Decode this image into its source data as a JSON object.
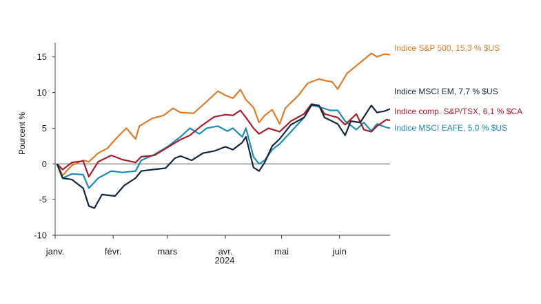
{
  "chart_data": {
    "type": "line",
    "title": "",
    "xlabel": "2024",
    "ylabel": "Pourcent  %",
    "ylim": [
      -10,
      17
    ],
    "y_ticks": [
      -10,
      -5,
      0,
      5,
      10,
      15
    ],
    "x_range": [
      "2024-01-01",
      "2024-06-28"
    ],
    "x_ticks": [
      {
        "date": "2024-01-01",
        "label": "janv."
      },
      {
        "date": "2024-02-01",
        "label": "févr."
      },
      {
        "date": "2024-03-01",
        "label": "mars"
      },
      {
        "date": "2024-04-01",
        "label": "avr."
      },
      {
        "date": "2024-05-01",
        "label": "mai"
      },
      {
        "date": "2024-06-01",
        "label": "juin"
      }
    ],
    "grid": false,
    "zero_line": true,
    "series": [
      {
        "name": "Indice S&P 500, 15,3 % $US",
        "color": "#E07B2A",
        "points": [
          [
            "2024-01-02",
            0
          ],
          [
            "2024-01-05",
            -1.6
          ],
          [
            "2024-01-10",
            -0.2
          ],
          [
            "2024-01-16",
            0.5
          ],
          [
            "2024-01-19",
            0.3
          ],
          [
            "2024-01-24",
            1.5
          ],
          [
            "2024-01-29",
            2.2
          ],
          [
            "2024-02-02",
            3.4
          ],
          [
            "2024-02-08",
            5.0
          ],
          [
            "2024-02-13",
            3.5
          ],
          [
            "2024-02-15",
            5.3
          ],
          [
            "2024-02-22",
            6.4
          ],
          [
            "2024-02-28",
            6.8
          ],
          [
            "2024-03-04",
            7.8
          ],
          [
            "2024-03-08",
            7.2
          ],
          [
            "2024-03-15",
            7.1
          ],
          [
            "2024-03-21",
            8.5
          ],
          [
            "2024-03-28",
            10.2
          ],
          [
            "2024-04-01",
            9.6
          ],
          [
            "2024-04-05",
            9.2
          ],
          [
            "2024-04-09",
            10.4
          ],
          [
            "2024-04-12",
            9.0
          ],
          [
            "2024-04-16",
            7.9
          ],
          [
            "2024-04-19",
            5.8
          ],
          [
            "2024-04-22",
            6.8
          ],
          [
            "2024-04-26",
            7.6
          ],
          [
            "2024-04-30",
            5.6
          ],
          [
            "2024-05-03",
            7.8
          ],
          [
            "2024-05-10",
            9.6
          ],
          [
            "2024-05-15",
            11.3
          ],
          [
            "2024-05-21",
            11.9
          ],
          [
            "2024-05-24",
            11.7
          ],
          [
            "2024-05-28",
            11.5
          ],
          [
            "2024-05-31",
            10.5
          ],
          [
            "2024-06-05",
            12.7
          ],
          [
            "2024-06-12",
            14.2
          ],
          [
            "2024-06-18",
            15.5
          ],
          [
            "2024-06-21",
            15.0
          ],
          [
            "2024-06-25",
            15.4
          ],
          [
            "2024-06-28",
            15.3
          ]
        ]
      },
      {
        "name": "Indice MSCI EM, 7,7 % $US",
        "color": "#12263F",
        "points": [
          [
            "2024-01-02",
            0
          ],
          [
            "2024-01-05",
            -2.0
          ],
          [
            "2024-01-10",
            -2.2
          ],
          [
            "2024-01-16",
            -3.4
          ],
          [
            "2024-01-19",
            -5.9
          ],
          [
            "2024-01-22",
            -6.2
          ],
          [
            "2024-01-26",
            -4.3
          ],
          [
            "2024-02-02",
            -4.5
          ],
          [
            "2024-02-07",
            -3.0
          ],
          [
            "2024-02-13",
            -2.0
          ],
          [
            "2024-02-16",
            -1.0
          ],
          [
            "2024-02-22",
            -0.8
          ],
          [
            "2024-02-29",
            -0.6
          ],
          [
            "2024-03-05",
            0.8
          ],
          [
            "2024-03-08",
            1.1
          ],
          [
            "2024-03-14",
            0.5
          ],
          [
            "2024-03-20",
            1.5
          ],
          [
            "2024-03-26",
            1.8
          ],
          [
            "2024-04-01",
            2.4
          ],
          [
            "2024-04-05",
            2.0
          ],
          [
            "2024-04-10",
            3.0
          ],
          [
            "2024-04-12",
            3.8
          ],
          [
            "2024-04-16",
            -0.5
          ],
          [
            "2024-04-19",
            -1.0
          ],
          [
            "2024-04-22",
            0.2
          ],
          [
            "2024-04-26",
            2.5
          ],
          [
            "2024-04-30",
            3.5
          ],
          [
            "2024-05-06",
            5.5
          ],
          [
            "2024-05-13",
            6.5
          ],
          [
            "2024-05-17",
            8.3
          ],
          [
            "2024-05-21",
            8.2
          ],
          [
            "2024-05-24",
            6.5
          ],
          [
            "2024-05-31",
            5.6
          ],
          [
            "2024-06-04",
            4.0
          ],
          [
            "2024-06-07",
            6.0
          ],
          [
            "2024-06-12",
            5.8
          ],
          [
            "2024-06-18",
            8.2
          ],
          [
            "2024-06-21",
            7.2
          ],
          [
            "2024-06-25",
            7.4
          ],
          [
            "2024-06-28",
            7.7
          ]
        ]
      },
      {
        "name": "Indice comp. S&P/TSX, 6,1 % $CA",
        "color": "#A61E2D",
        "points": [
          [
            "2024-01-02",
            0
          ],
          [
            "2024-01-05",
            -0.8
          ],
          [
            "2024-01-10",
            0.2
          ],
          [
            "2024-01-16",
            0.4
          ],
          [
            "2024-01-19",
            -1.8
          ],
          [
            "2024-01-24",
            0.3
          ],
          [
            "2024-01-31",
            1.2
          ],
          [
            "2024-02-06",
            0.6
          ],
          [
            "2024-02-13",
            0.2
          ],
          [
            "2024-02-16",
            1.0
          ],
          [
            "2024-02-23",
            1.2
          ],
          [
            "2024-03-01",
            2.3
          ],
          [
            "2024-03-08",
            3.4
          ],
          [
            "2024-03-13",
            4.0
          ],
          [
            "2024-03-19",
            5.3
          ],
          [
            "2024-03-26",
            6.6
          ],
          [
            "2024-04-01",
            6.9
          ],
          [
            "2024-04-05",
            6.8
          ],
          [
            "2024-04-09",
            7.5
          ],
          [
            "2024-04-12",
            6.5
          ],
          [
            "2024-04-16",
            5.0
          ],
          [
            "2024-04-19",
            4.2
          ],
          [
            "2024-04-24",
            5.0
          ],
          [
            "2024-04-30",
            4.5
          ],
          [
            "2024-05-06",
            6.0
          ],
          [
            "2024-05-13",
            7.0
          ],
          [
            "2024-05-17",
            8.4
          ],
          [
            "2024-05-21",
            8.2
          ],
          [
            "2024-05-24",
            7.0
          ],
          [
            "2024-05-31",
            6.5
          ],
          [
            "2024-06-04",
            5.5
          ],
          [
            "2024-06-10",
            7.0
          ],
          [
            "2024-06-14",
            4.8
          ],
          [
            "2024-06-18",
            4.5
          ],
          [
            "2024-06-21",
            5.3
          ],
          [
            "2024-06-26",
            6.2
          ],
          [
            "2024-06-28",
            6.1
          ]
        ]
      },
      {
        "name": "Indice MSCI EAFE, 5,0 % $US",
        "color": "#1F8AB5",
        "points": [
          [
            "2024-01-02",
            0
          ],
          [
            "2024-01-05",
            -2.0
          ],
          [
            "2024-01-10",
            -1.4
          ],
          [
            "2024-01-16",
            -1.5
          ],
          [
            "2024-01-19",
            -3.4
          ],
          [
            "2024-01-24",
            -2.0
          ],
          [
            "2024-01-31",
            -1.0
          ],
          [
            "2024-02-06",
            -1.2
          ],
          [
            "2024-02-13",
            -1.0
          ],
          [
            "2024-02-16",
            0.5
          ],
          [
            "2024-02-23",
            1.3
          ],
          [
            "2024-03-01",
            2.4
          ],
          [
            "2024-03-08",
            3.8
          ],
          [
            "2024-03-13",
            5.0
          ],
          [
            "2024-03-18",
            4.2
          ],
          [
            "2024-03-22",
            5.0
          ],
          [
            "2024-03-28",
            5.3
          ],
          [
            "2024-04-02",
            4.6
          ],
          [
            "2024-04-05",
            5.0
          ],
          [
            "2024-04-10",
            3.8
          ],
          [
            "2024-04-12",
            5.0
          ],
          [
            "2024-04-16",
            1.0
          ],
          [
            "2024-04-19",
            0.0
          ],
          [
            "2024-04-22",
            0.5
          ],
          [
            "2024-04-26",
            2.0
          ],
          [
            "2024-04-30",
            2.8
          ],
          [
            "2024-05-06",
            4.5
          ],
          [
            "2024-05-13",
            6.5
          ],
          [
            "2024-05-17",
            8.2
          ],
          [
            "2024-05-21",
            8.0
          ],
          [
            "2024-05-27",
            7.5
          ],
          [
            "2024-05-31",
            7.5
          ],
          [
            "2024-06-04",
            6.0
          ],
          [
            "2024-06-10",
            4.8
          ],
          [
            "2024-06-14",
            5.8
          ],
          [
            "2024-06-18",
            4.6
          ],
          [
            "2024-06-21",
            5.6
          ],
          [
            "2024-06-25",
            5.2
          ],
          [
            "2024-06-28",
            5.0
          ]
        ]
      }
    ]
  }
}
